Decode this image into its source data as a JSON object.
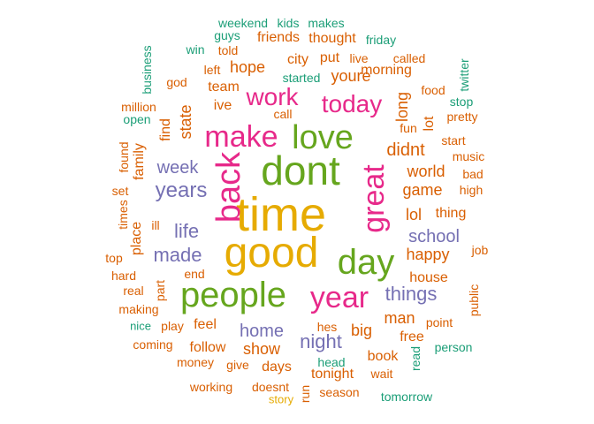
{
  "colors": {
    "green_teal": "#1b9e77",
    "orange": "#d95f02",
    "purple": "#7570b3",
    "pink": "#e7298a",
    "lime": "#66a61e",
    "gold": "#e6ab02"
  },
  "words": [
    {
      "text": "time",
      "color": "#e6ab02"
    },
    {
      "text": "good",
      "color": "#e6ab02"
    },
    {
      "text": "dont",
      "color": "#66a61e"
    },
    {
      "text": "people",
      "color": "#66a61e"
    },
    {
      "text": "day",
      "color": "#66a61e"
    },
    {
      "text": "back",
      "color": "#e7298a"
    },
    {
      "text": "love",
      "color": "#66a61e"
    },
    {
      "text": "make",
      "color": "#e7298a"
    },
    {
      "text": "great",
      "color": "#e7298a"
    },
    {
      "text": "year",
      "color": "#e7298a"
    },
    {
      "text": "work",
      "color": "#e7298a"
    },
    {
      "text": "today",
      "color": "#e7298a"
    },
    {
      "text": "years",
      "color": "#7570b3"
    },
    {
      "text": "week",
      "color": "#7570b3"
    },
    {
      "text": "life",
      "color": "#7570b3"
    },
    {
      "text": "made",
      "color": "#7570b3"
    },
    {
      "text": "school",
      "color": "#7570b3"
    },
    {
      "text": "things",
      "color": "#7570b3"
    },
    {
      "text": "home",
      "color": "#7570b3"
    },
    {
      "text": "night",
      "color": "#7570b3"
    },
    {
      "text": "didnt",
      "color": "#d95f02"
    },
    {
      "text": "world",
      "color": "#d95f02"
    },
    {
      "text": "game",
      "color": "#d95f02"
    },
    {
      "text": "happy",
      "color": "#d95f02"
    },
    {
      "text": "youre",
      "color": "#d95f02"
    },
    {
      "text": "long",
      "color": "#d95f02"
    },
    {
      "text": "state",
      "color": "#d95f02"
    },
    {
      "text": "show",
      "color": "#d95f02"
    },
    {
      "text": "lol",
      "color": "#d95f02"
    },
    {
      "text": "thing",
      "color": "#d95f02"
    },
    {
      "text": "man",
      "color": "#d95f02"
    },
    {
      "text": "house",
      "color": "#d95f02"
    },
    {
      "text": "big",
      "color": "#d95f02"
    },
    {
      "text": "hope",
      "color": "#d95f02"
    },
    {
      "text": "city",
      "color": "#d95f02"
    },
    {
      "text": "put",
      "color": "#d95f02"
    },
    {
      "text": "ive",
      "color": "#d95f02"
    },
    {
      "text": "team",
      "color": "#d95f02"
    },
    {
      "text": "left",
      "color": "#d95f02"
    },
    {
      "text": "god",
      "color": "#d95f02"
    },
    {
      "text": "family",
      "color": "#d95f02"
    },
    {
      "text": "find",
      "color": "#d95f02"
    },
    {
      "text": "place",
      "color": "#d95f02"
    },
    {
      "text": "feel",
      "color": "#d95f02"
    },
    {
      "text": "follow",
      "color": "#d95f02"
    },
    {
      "text": "days",
      "color": "#d95f02"
    },
    {
      "text": "end",
      "color": "#d95f02"
    },
    {
      "text": "play",
      "color": "#d95f02"
    },
    {
      "text": "part",
      "color": "#d95f02"
    },
    {
      "text": "hes",
      "color": "#d95f02"
    },
    {
      "text": "free",
      "color": "#d95f02"
    },
    {
      "text": "book",
      "color": "#d95f02"
    },
    {
      "text": "tonight",
      "color": "#d95f02"
    },
    {
      "text": "wait",
      "color": "#d95f02"
    },
    {
      "text": "season",
      "color": "#d95f02"
    },
    {
      "text": "doesnt",
      "color": "#d95f02"
    },
    {
      "text": "working",
      "color": "#d95f02"
    },
    {
      "text": "run",
      "color": "#d95f02"
    },
    {
      "text": "give",
      "color": "#d95f02"
    },
    {
      "text": "money",
      "color": "#d95f02"
    },
    {
      "text": "coming",
      "color": "#d95f02"
    },
    {
      "text": "making",
      "color": "#d95f02"
    },
    {
      "text": "real",
      "color": "#d95f02"
    },
    {
      "text": "hard",
      "color": "#d95f02"
    },
    {
      "text": "top",
      "color": "#d95f02"
    },
    {
      "text": "ill",
      "color": "#d95f02"
    },
    {
      "text": "times",
      "color": "#d95f02"
    },
    {
      "text": "set",
      "color": "#d95f02"
    },
    {
      "text": "found",
      "color": "#d95f02"
    },
    {
      "text": "million",
      "color": "#d95f02"
    },
    {
      "text": "call",
      "color": "#d95f02"
    },
    {
      "text": "morning",
      "color": "#d95f02"
    },
    {
      "text": "fun",
      "color": "#d95f02"
    },
    {
      "text": "lot",
      "color": "#d95f02"
    },
    {
      "text": "start",
      "color": "#d95f02"
    },
    {
      "text": "music",
      "color": "#d95f02"
    },
    {
      "text": "bad",
      "color": "#d95f02"
    },
    {
      "text": "high",
      "color": "#d95f02"
    },
    {
      "text": "job",
      "color": "#d95f02"
    },
    {
      "text": "public",
      "color": "#d95f02"
    },
    {
      "text": "point",
      "color": "#d95f02"
    },
    {
      "text": "pretty",
      "color": "#d95f02"
    },
    {
      "text": "food",
      "color": "#d95f02"
    },
    {
      "text": "called",
      "color": "#d95f02"
    },
    {
      "text": "friends",
      "color": "#d95f02"
    },
    {
      "text": "thought",
      "color": "#d95f02"
    },
    {
      "text": "live",
      "color": "#d95f02"
    },
    {
      "text": "told",
      "color": "#d95f02"
    },
    {
      "text": "weekend",
      "color": "#1b9e77"
    },
    {
      "text": "kids",
      "color": "#1b9e77"
    },
    {
      "text": "makes",
      "color": "#1b9e77"
    },
    {
      "text": "guys",
      "color": "#1b9e77"
    },
    {
      "text": "friday",
      "color": "#1b9e77"
    },
    {
      "text": "win",
      "color": "#1b9e77"
    },
    {
      "text": "business",
      "color": "#1b9e77"
    },
    {
      "text": "twitter",
      "color": "#1b9e77"
    },
    {
      "text": "started",
      "color": "#1b9e77"
    },
    {
      "text": "stop",
      "color": "#1b9e77"
    },
    {
      "text": "open",
      "color": "#1b9e77"
    },
    {
      "text": "nice",
      "color": "#1b9e77"
    },
    {
      "text": "person",
      "color": "#1b9e77"
    },
    {
      "text": "read",
      "color": "#1b9e77"
    },
    {
      "text": "head",
      "color": "#1b9e77"
    },
    {
      "text": "tomorrow",
      "color": "#1b9e77"
    },
    {
      "text": "story",
      "color": "#e6ab02"
    }
  ]
}
